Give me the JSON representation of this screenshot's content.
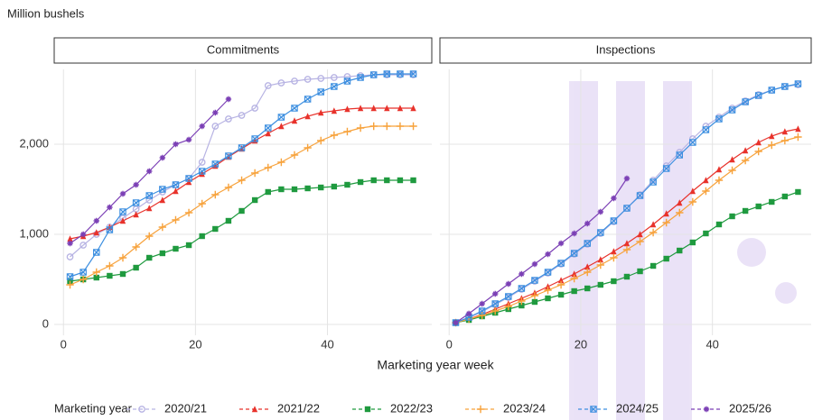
{
  "chart_data": [
    {
      "type": "line",
      "title": "Commitments",
      "ylabel": "Million bushels",
      "xlabel": "Marketing year week",
      "legend_title": "Marketing year",
      "xlim": [
        -1.4,
        55.8
      ],
      "xticks": [
        0,
        20,
        40
      ],
      "ylim": [
        -120,
        2830
      ],
      "yticks": [
        0,
        {
          "value": 1000,
          "label": "1,000"
        },
        {
          "value": 2000,
          "label": "2,000"
        }
      ],
      "grid": true,
      "x": [
        1,
        3,
        5,
        7,
        9,
        11,
        13,
        15,
        17,
        19,
        21,
        23,
        25,
        27,
        29,
        31,
        33,
        35,
        37,
        39,
        41,
        43,
        45,
        47,
        49,
        51,
        53
      ],
      "series": [
        {
          "name": "2020/21",
          "color": "#b7b3e3",
          "marker": "circle",
          "values": [
            750,
            880,
            1000,
            1080,
            1180,
            1280,
            1380,
            1470,
            1550,
            1620,
            1800,
            2200,
            2280,
            2320,
            2400,
            2650,
            2680,
            2700,
            2720,
            2730,
            2740,
            2750,
            2760,
            2770,
            2770,
            2770,
            2770
          ]
        },
        {
          "name": "2021/22",
          "color": "#e8322b",
          "marker": "triangle",
          "values": [
            950,
            980,
            1020,
            1080,
            1150,
            1220,
            1290,
            1380,
            1480,
            1580,
            1670,
            1760,
            1860,
            1950,
            2040,
            2120,
            2200,
            2260,
            2310,
            2350,
            2370,
            2390,
            2400,
            2400,
            2400,
            2400,
            2400
          ]
        },
        {
          "name": "2022/23",
          "color": "#1f9a3f",
          "marker": "square",
          "values": [
            480,
            500,
            520,
            540,
            560,
            630,
            740,
            790,
            840,
            880,
            980,
            1060,
            1150,
            1260,
            1380,
            1470,
            1500,
            1500,
            1510,
            1520,
            1530,
            1550,
            1580,
            1600,
            1600,
            1600,
            1600
          ]
        },
        {
          "name": "2023/24",
          "color": "#f7a23b",
          "marker": "plus",
          "values": [
            440,
            500,
            580,
            650,
            740,
            860,
            980,
            1080,
            1160,
            1240,
            1340,
            1440,
            1520,
            1600,
            1680,
            1740,
            1800,
            1880,
            1960,
            2040,
            2100,
            2140,
            2180,
            2200,
            2200,
            2200,
            2200
          ]
        },
        {
          "name": "2024/25",
          "color": "#3d8fe0",
          "marker": "boxx",
          "values": [
            530,
            580,
            800,
            1050,
            1250,
            1350,
            1430,
            1500,
            1550,
            1620,
            1700,
            1780,
            1870,
            1960,
            2060,
            2180,
            2300,
            2400,
            2500,
            2580,
            2640,
            2700,
            2740,
            2770,
            2780,
            2780,
            2780
          ]
        },
        {
          "name": "2025/26",
          "color": "#7b3fb5",
          "marker": "star",
          "values": [
            900,
            1000,
            1150,
            1300,
            1450,
            1550,
            1700,
            1850,
            2000,
            2050,
            2200,
            2350,
            2500,
            null,
            null,
            null,
            null,
            null,
            null,
            null,
            null,
            null,
            null,
            null,
            null,
            null,
            null
          ]
        }
      ]
    },
    {
      "type": "line",
      "title": "Inspections",
      "xlim": [
        -1.4,
        55
      ],
      "xticks": [
        0,
        20,
        40
      ],
      "ylim": [
        -120,
        2830
      ],
      "yticks": [
        0,
        1000,
        2000
      ],
      "grid": true,
      "x": [
        1,
        3,
        5,
        7,
        9,
        11,
        13,
        15,
        17,
        19,
        21,
        23,
        25,
        27,
        29,
        31,
        33,
        35,
        37,
        39,
        41,
        43,
        45,
        47,
        49,
        51,
        53
      ],
      "series": [
        {
          "color": "#b7b3e3",
          "marker": "circle",
          "values": [
            20,
            75,
            140,
            220,
            300,
            390,
            480,
            570,
            670,
            780,
            890,
            1010,
            1140,
            1290,
            1440,
            1600,
            1760,
            1910,
            2060,
            2200,
            2300,
            2400,
            2480,
            2550,
            2600,
            2640,
            2660
          ]
        },
        {
          "color": "#e8322b",
          "marker": "triangle",
          "values": [
            20,
            60,
            110,
            170,
            230,
            290,
            350,
            420,
            490,
            560,
            640,
            720,
            810,
            900,
            1000,
            1110,
            1230,
            1350,
            1480,
            1600,
            1720,
            1830,
            1930,
            2020,
            2090,
            2140,
            2170
          ]
        },
        {
          "color": "#1f9a3f",
          "marker": "square",
          "values": [
            20,
            50,
            90,
            130,
            170,
            210,
            250,
            290,
            330,
            370,
            400,
            440,
            480,
            530,
            590,
            650,
            730,
            820,
            910,
            1010,
            1110,
            1200,
            1260,
            1310,
            1360,
            1420,
            1470
          ]
        },
        {
          "color": "#f7a23b",
          "marker": "plus",
          "values": [
            20,
            60,
            100,
            150,
            200,
            260,
            320,
            380,
            440,
            510,
            580,
            660,
            740,
            830,
            920,
            1020,
            1130,
            1240,
            1360,
            1480,
            1600,
            1710,
            1820,
            1920,
            1990,
            2040,
            2080
          ]
        },
        {
          "color": "#3d8fe0",
          "marker": "boxx",
          "values": [
            20,
            80,
            150,
            230,
            310,
            400,
            490,
            580,
            680,
            790,
            900,
            1020,
            1150,
            1290,
            1430,
            1580,
            1730,
            1880,
            2020,
            2160,
            2280,
            2380,
            2470,
            2540,
            2600,
            2640,
            2670
          ]
        },
        {
          "color": "#7b3fb5",
          "marker": "star",
          "values": [
            20,
            120,
            230,
            340,
            450,
            560,
            670,
            780,
            900,
            1010,
            1120,
            1250,
            1400,
            1620,
            null,
            null,
            null,
            null,
            null,
            null,
            null,
            null,
            null,
            null,
            null,
            null,
            null
          ]
        }
      ]
    }
  ]
}
